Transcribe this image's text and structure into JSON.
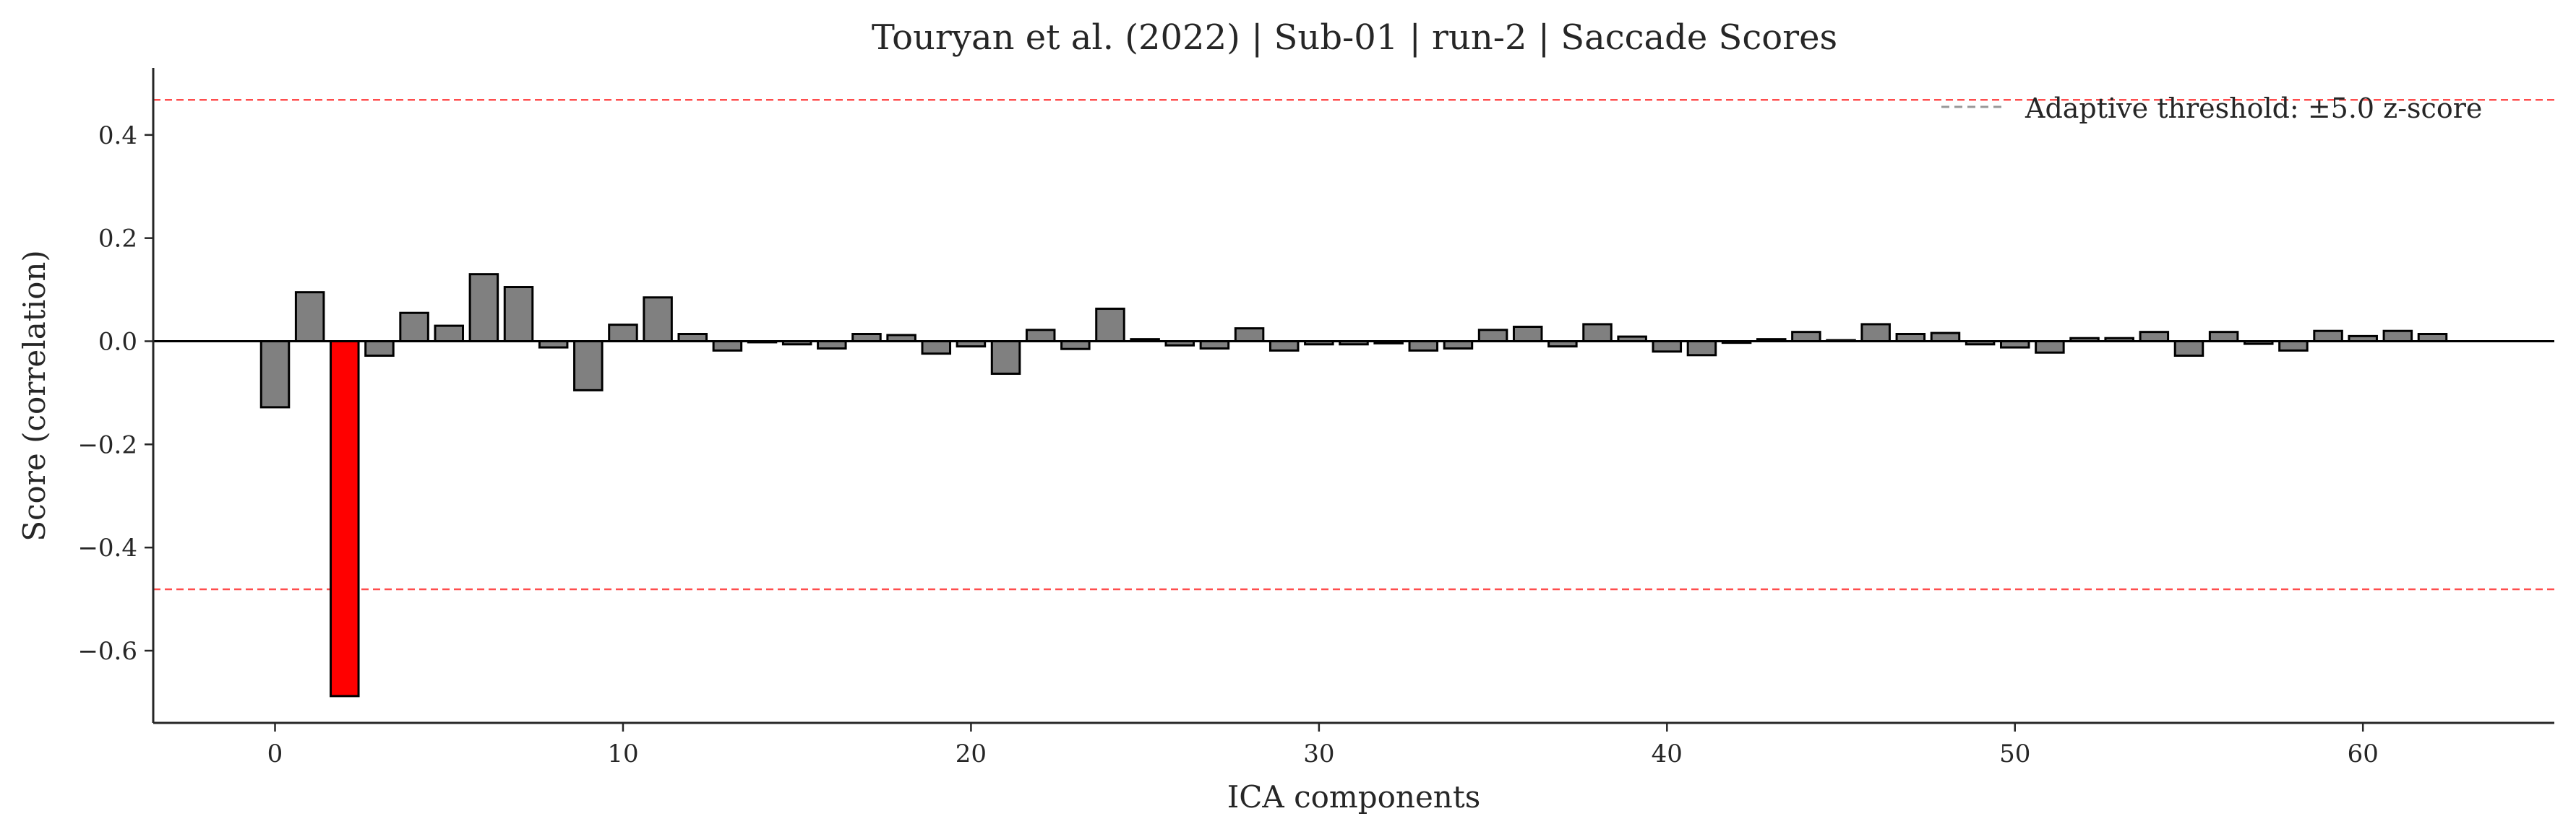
{
  "chart_data": {
    "type": "bar",
    "title": "Touryan et al. (2022) | Sub-01 | run-2 | Saccade Scores",
    "xlabel": "ICA components",
    "ylabel": "Score (correlation)",
    "xlim": [
      -3.5,
      65.5
    ],
    "ylim": [
      -0.74,
      0.53
    ],
    "xticks": [
      0,
      10,
      20,
      30,
      40,
      50,
      60
    ],
    "yticks": [
      -0.6,
      -0.4,
      -0.2,
      0.0,
      0.2,
      0.4
    ],
    "xtick_labels": [
      "0",
      "10",
      "20",
      "30",
      "40",
      "50",
      "60"
    ],
    "ytick_labels": [
      "−0.6",
      "−0.4",
      "−0.2",
      "0.0",
      "0.2",
      "0.4"
    ],
    "x": [
      0,
      1,
      2,
      3,
      4,
      5,
      6,
      7,
      8,
      9,
      10,
      11,
      12,
      13,
      14,
      15,
      16,
      17,
      18,
      19,
      20,
      21,
      22,
      23,
      24,
      25,
      26,
      27,
      28,
      29,
      30,
      31,
      32,
      33,
      34,
      35,
      36,
      37,
      38,
      39,
      40,
      41,
      42,
      43,
      44,
      45,
      46,
      47,
      48,
      49,
      50,
      51,
      52,
      53,
      54,
      55,
      56,
      57,
      58,
      59,
      60,
      61,
      62
    ],
    "values": [
      -0.128,
      0.095,
      -0.688,
      -0.028,
      0.055,
      0.03,
      0.13,
      0.105,
      -0.012,
      -0.095,
      0.032,
      0.085,
      0.014,
      -0.018,
      -0.002,
      -0.006,
      -0.014,
      0.014,
      0.012,
      -0.024,
      -0.01,
      -0.063,
      0.022,
      -0.015,
      0.063,
      0.004,
      -0.008,
      -0.014,
      0.025,
      -0.018,
      -0.006,
      -0.006,
      -0.004,
      -0.018,
      -0.014,
      0.022,
      0.028,
      -0.01,
      0.033,
      0.009,
      -0.02,
      -0.027,
      -0.003,
      0.004,
      0.018,
      0.002,
      0.033,
      0.014,
      0.016,
      -0.006,
      -0.012,
      -0.022,
      0.006,
      0.006,
      0.018,
      -0.028,
      0.018,
      -0.005,
      -0.018,
      0.02,
      0.01,
      0.02,
      0.014
    ],
    "excluded": [
      2
    ],
    "bar_color": "#808080",
    "excluded_color": "#ff0000",
    "edge_color": "#000000",
    "thresholds": [
      0.468,
      -0.481
    ],
    "threshold_color": "#ff4d4d",
    "legend": {
      "label": "Adaptive threshold: ±5.0 z-score",
      "placement": "top-right",
      "line_color": "#999999"
    },
    "grid": false
  }
}
